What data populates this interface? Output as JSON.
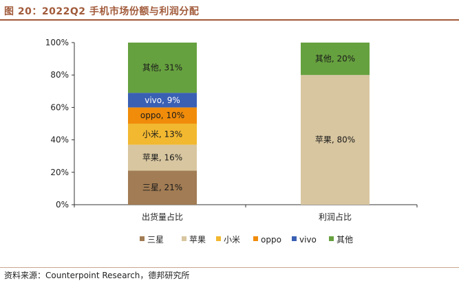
{
  "title": "图 20：2022Q2 手机市场份额与利润分配",
  "source": "资料来源：Counterpoint Research，德邦研究所",
  "chart_data": {
    "type": "bar",
    "stacked": true,
    "categories": [
      "出货量占比",
      "利润占比"
    ],
    "ylim": [
      0,
      100
    ],
    "y_ticks": [
      "0%",
      "20%",
      "40%",
      "60%",
      "80%",
      "100%"
    ],
    "legend_position": "bottom",
    "series": [
      {
        "name": "三星",
        "color": "#a27c54",
        "values": [
          21,
          0
        ],
        "labels": [
          "三星, 21%",
          ""
        ]
      },
      {
        "name": "苹果",
        "color": "#d8c6a0",
        "values": [
          16,
          80
        ],
        "labels": [
          "苹果, 16%",
          "苹果, 80%"
        ]
      },
      {
        "name": "小米",
        "color": "#f2b830",
        "values": [
          13,
          0
        ],
        "labels": [
          "小米, 13%",
          ""
        ]
      },
      {
        "name": "oppo",
        "color": "#f08c0a",
        "values": [
          10,
          0
        ],
        "labels": [
          "oppo, 10%",
          ""
        ]
      },
      {
        "name": "vivo",
        "color": "#3a60b4",
        "values": [
          9,
          0
        ],
        "labels": [
          "vivo, 9%",
          ""
        ]
      },
      {
        "name": "其他",
        "color": "#66a13f",
        "values": [
          31,
          20
        ],
        "labels": [
          "其他, 31%",
          "其他, 20%"
        ]
      }
    ]
  }
}
